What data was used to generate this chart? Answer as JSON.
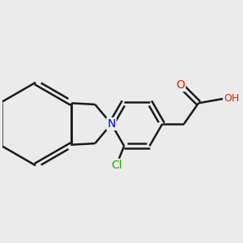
{
  "bg_color": "#ebebeb",
  "bond_color": "#1a1a1a",
  "bond_width": 1.8,
  "atom_colors": {
    "N": "#0000ee",
    "O": "#dd2200",
    "Cl": "#22aa00",
    "H": "#777777",
    "C": "#1a1a1a"
  },
  "font_size": 10,
  "font_size_small": 9,
  "fig_size": [
    3.0,
    3.0
  ],
  "dpi": 100
}
